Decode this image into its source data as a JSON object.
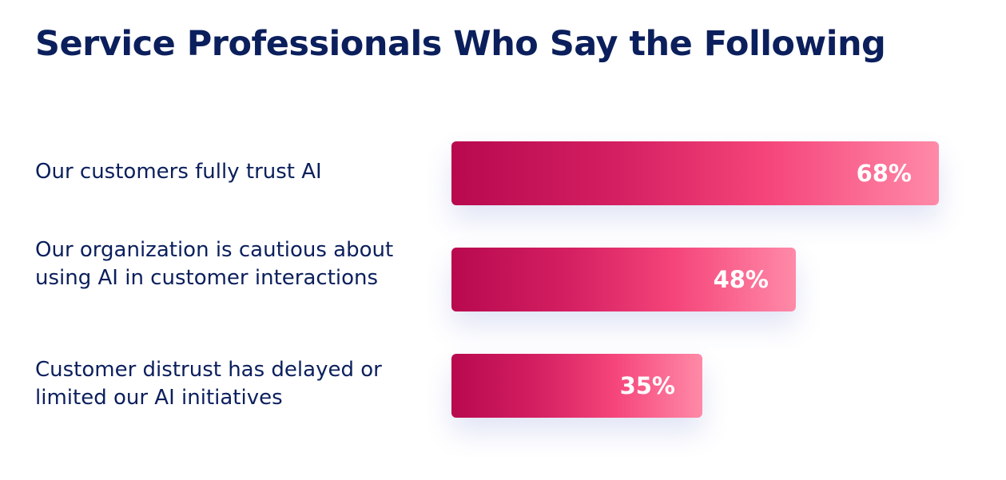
{
  "chart_data": {
    "type": "bar",
    "orientation": "horizontal",
    "title": "Service Professionals Who Say the Following",
    "categories": [
      "Our customers fully trust AI",
      "Our organization is cautious about using AI in customer interactions",
      "Customer distrust has delayed or limited our AI initiatives"
    ],
    "values": [
      68,
      48,
      35
    ],
    "value_labels": [
      "68%",
      "48%",
      "35%"
    ],
    "unit": "%",
    "grid": false,
    "legend": "none",
    "colors": {
      "title": "#0b1f5c",
      "label": "#0b1f5c",
      "bar_start": "#b8094f",
      "bar_end": "#ff8aa8",
      "value_text": "#ffffff"
    }
  }
}
